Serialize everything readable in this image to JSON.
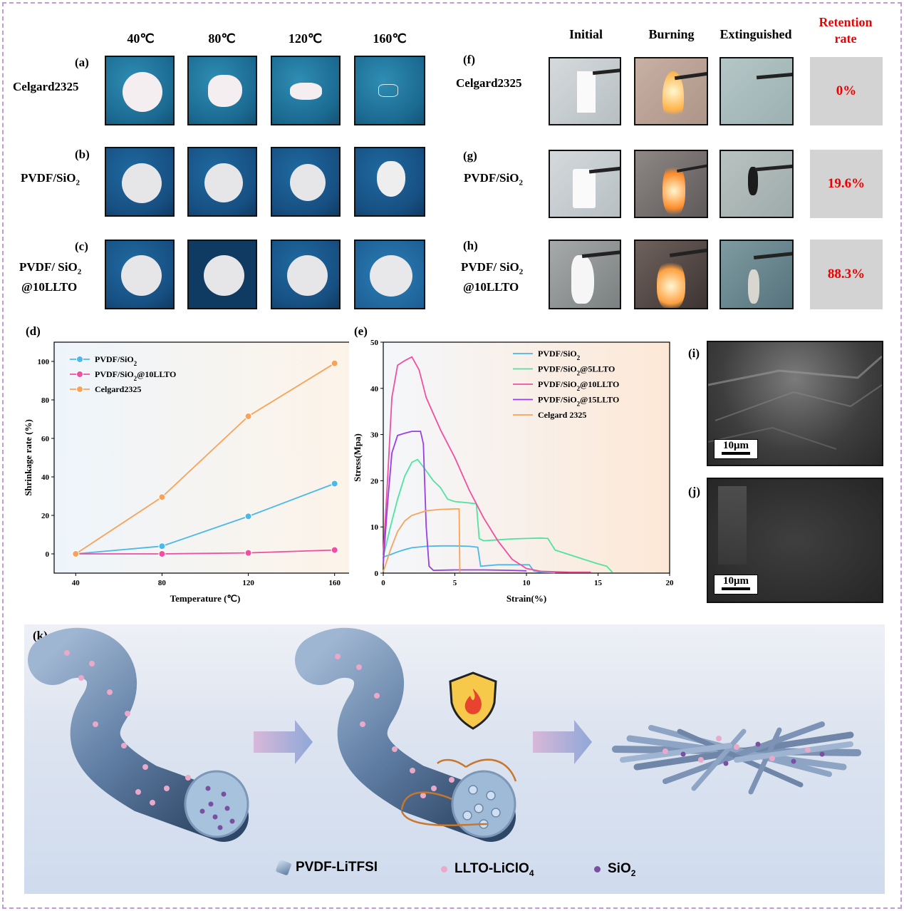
{
  "temp_headers": [
    "40℃",
    "80℃",
    "120℃",
    "160℃"
  ],
  "burn_headers": [
    "Initial",
    "Burning",
    "Extinguished"
  ],
  "retention_header": [
    "Retention",
    "rate"
  ],
  "rows_left": [
    {
      "letter": "(a)",
      "name": "Celgard2325"
    },
    {
      "letter": "(b)",
      "name": "PVDF/SiO",
      "sub": "2"
    },
    {
      "letter": "(c)",
      "name": "PVDF/ SiO",
      "sub": "2",
      "name2": "@10LLTO"
    }
  ],
  "rows_right": [
    {
      "letter": "(f)",
      "name": "Celgard2325",
      "retention": "0%"
    },
    {
      "letter": "(g)",
      "name": "PVDF/SiO",
      "sub": "2",
      "retention": "19.6%"
    },
    {
      "letter": "(h)",
      "name": "PVDF/ SiO",
      "sub": "2",
      "name2": "@10LLTO",
      "retention": "88.3%"
    }
  ],
  "panel_d": "(d)",
  "panel_e": "(e)",
  "panel_i": "(i)",
  "panel_j": "(j)",
  "panel_k": "(k)",
  "scale_label": "10μm",
  "colors": {
    "blue": "#4ab8ea",
    "pink": "#f04fa0",
    "orange": "#f7a45a",
    "green": "#4fe3a0",
    "purple": "#9a3de6",
    "retention": "#e00000"
  },
  "chart_data": [
    {
      "type": "line",
      "xlabel": "Temperature (℃)",
      "ylabel": "Shrinkage rate (%)",
      "xlim": [
        30,
        170
      ],
      "ylim": [
        -10,
        110
      ],
      "xticks": [
        40,
        80,
        120,
        160
      ],
      "yticks": [
        0,
        20,
        40,
        60,
        80,
        100
      ],
      "x": [
        40,
        80,
        120,
        160
      ],
      "series": [
        {
          "name": "PVDF/SiO",
          "sub": "2",
          "color": "#4ab8ea",
          "values": [
            0,
            4,
            19.5,
            36.5
          ]
        },
        {
          "name": "PVDF/SiO",
          "sub": "2",
          "tail": "@10LLTO",
          "color": "#f04fa0",
          "values": [
            0,
            0,
            0.5,
            2
          ]
        },
        {
          "name": "Celgard2325",
          "color": "#f7a45a",
          "values": [
            0,
            29.5,
            71.5,
            99
          ]
        }
      ],
      "legend": "top-left"
    },
    {
      "type": "line",
      "xlabel": "Strain(%)",
      "ylabel": "Stress(Mpa)",
      "xlim": [
        0,
        20
      ],
      "ylim": [
        0,
        50
      ],
      "xticks": [
        0,
        5,
        10,
        15,
        20
      ],
      "yticks": [
        0,
        10,
        20,
        30,
        40,
        50
      ],
      "series": [
        {
          "name": "PVDF/SiO",
          "sub": "2",
          "color": "#4ab8ea",
          "points": [
            [
              0,
              3.5
            ],
            [
              0.5,
              4
            ],
            [
              1,
              4.6
            ],
            [
              1.5,
              5.1
            ],
            [
              2,
              5.5
            ],
            [
              3,
              5.8
            ],
            [
              4,
              5.9
            ],
            [
              5,
              5.9
            ],
            [
              6,
              5.8
            ],
            [
              6.6,
              5.6
            ],
            [
              6.8,
              1.5
            ],
            [
              8,
              1.8
            ],
            [
              9,
              1.8
            ],
            [
              10.2,
              1.8
            ],
            [
              10.5,
              0.5
            ],
            [
              11,
              0.2
            ],
            [
              12,
              0.1
            ]
          ]
        },
        {
          "name": "PVDF/SiO",
          "sub": "2",
          "tail": "@5LLTO",
          "color": "#4fe3a0",
          "points": [
            [
              0,
              3.5
            ],
            [
              0.5,
              10
            ],
            [
              1,
              16
            ],
            [
              1.5,
              21
            ],
            [
              2,
              24
            ],
            [
              2.4,
              24.6
            ],
            [
              2.8,
              23
            ],
            [
              3.5,
              20
            ],
            [
              4,
              18.5
            ],
            [
              4.5,
              16
            ],
            [
              5,
              15.5
            ],
            [
              6,
              15.2
            ],
            [
              6.5,
              15
            ],
            [
              6.7,
              7.5
            ],
            [
              7,
              7
            ],
            [
              8,
              7.2
            ],
            [
              9,
              7.4
            ],
            [
              10,
              7.5
            ],
            [
              11,
              7.6
            ],
            [
              11.5,
              7.5
            ],
            [
              12,
              5
            ],
            [
              13,
              4
            ],
            [
              14,
              3
            ],
            [
              15,
              2
            ],
            [
              15.6,
              1.5
            ],
            [
              16,
              0.2
            ]
          ]
        },
        {
          "name": "PVDF/SiO",
          "sub": "2",
          "tail": "@10LLTO",
          "color": "#f04fa0",
          "points": [
            [
              0,
              4
            ],
            [
              0.3,
              20
            ],
            [
              0.6,
              38
            ],
            [
              1,
              45
            ],
            [
              1.5,
              46
            ],
            [
              2,
              46.8
            ],
            [
              2.5,
              44
            ],
            [
              3,
              38
            ],
            [
              4,
              31
            ],
            [
              5,
              25
            ],
            [
              6,
              18
            ],
            [
              7,
              12
            ],
            [
              8,
              7
            ],
            [
              9,
              3
            ],
            [
              10,
              1
            ],
            [
              11,
              0.4
            ],
            [
              13,
              0.2
            ],
            [
              14.5,
              0.2
            ]
          ]
        },
        {
          "name": "PVDF/SiO",
          "sub": "2",
          "tail": "@15LLTO",
          "color": "#9a3de6",
          "points": [
            [
              0,
              2
            ],
            [
              0.3,
              15
            ],
            [
              0.6,
              26
            ],
            [
              1,
              29.8
            ],
            [
              1.5,
              30.3
            ],
            [
              2,
              30.7
            ],
            [
              2.6,
              30.7
            ],
            [
              2.8,
              28
            ],
            [
              3,
              10
            ],
            [
              3.2,
              1.5
            ],
            [
              3.5,
              0.6
            ],
            [
              5,
              0.7
            ],
            [
              7,
              0.7
            ],
            [
              9,
              0.6
            ],
            [
              10,
              0.5
            ]
          ]
        },
        {
          "name": "Celgard 2325",
          "color": "#f7a45a",
          "points": [
            [
              0,
              0.3
            ],
            [
              0.5,
              5
            ],
            [
              1,
              9
            ],
            [
              1.5,
              11.3
            ],
            [
              2,
              12.5
            ],
            [
              3,
              13.5
            ],
            [
              4,
              13.8
            ],
            [
              5,
              13.9
            ],
            [
              5.3,
              13.9
            ],
            [
              5.35,
              0.2
            ]
          ]
        }
      ],
      "legend": "top-right"
    }
  ],
  "k_legend": [
    {
      "label": "PVDF-LiTFSI"
    },
    {
      "label": "LLTO-LiClO",
      "sub": "4"
    },
    {
      "label": "SiO",
      "sub": "2"
    }
  ]
}
